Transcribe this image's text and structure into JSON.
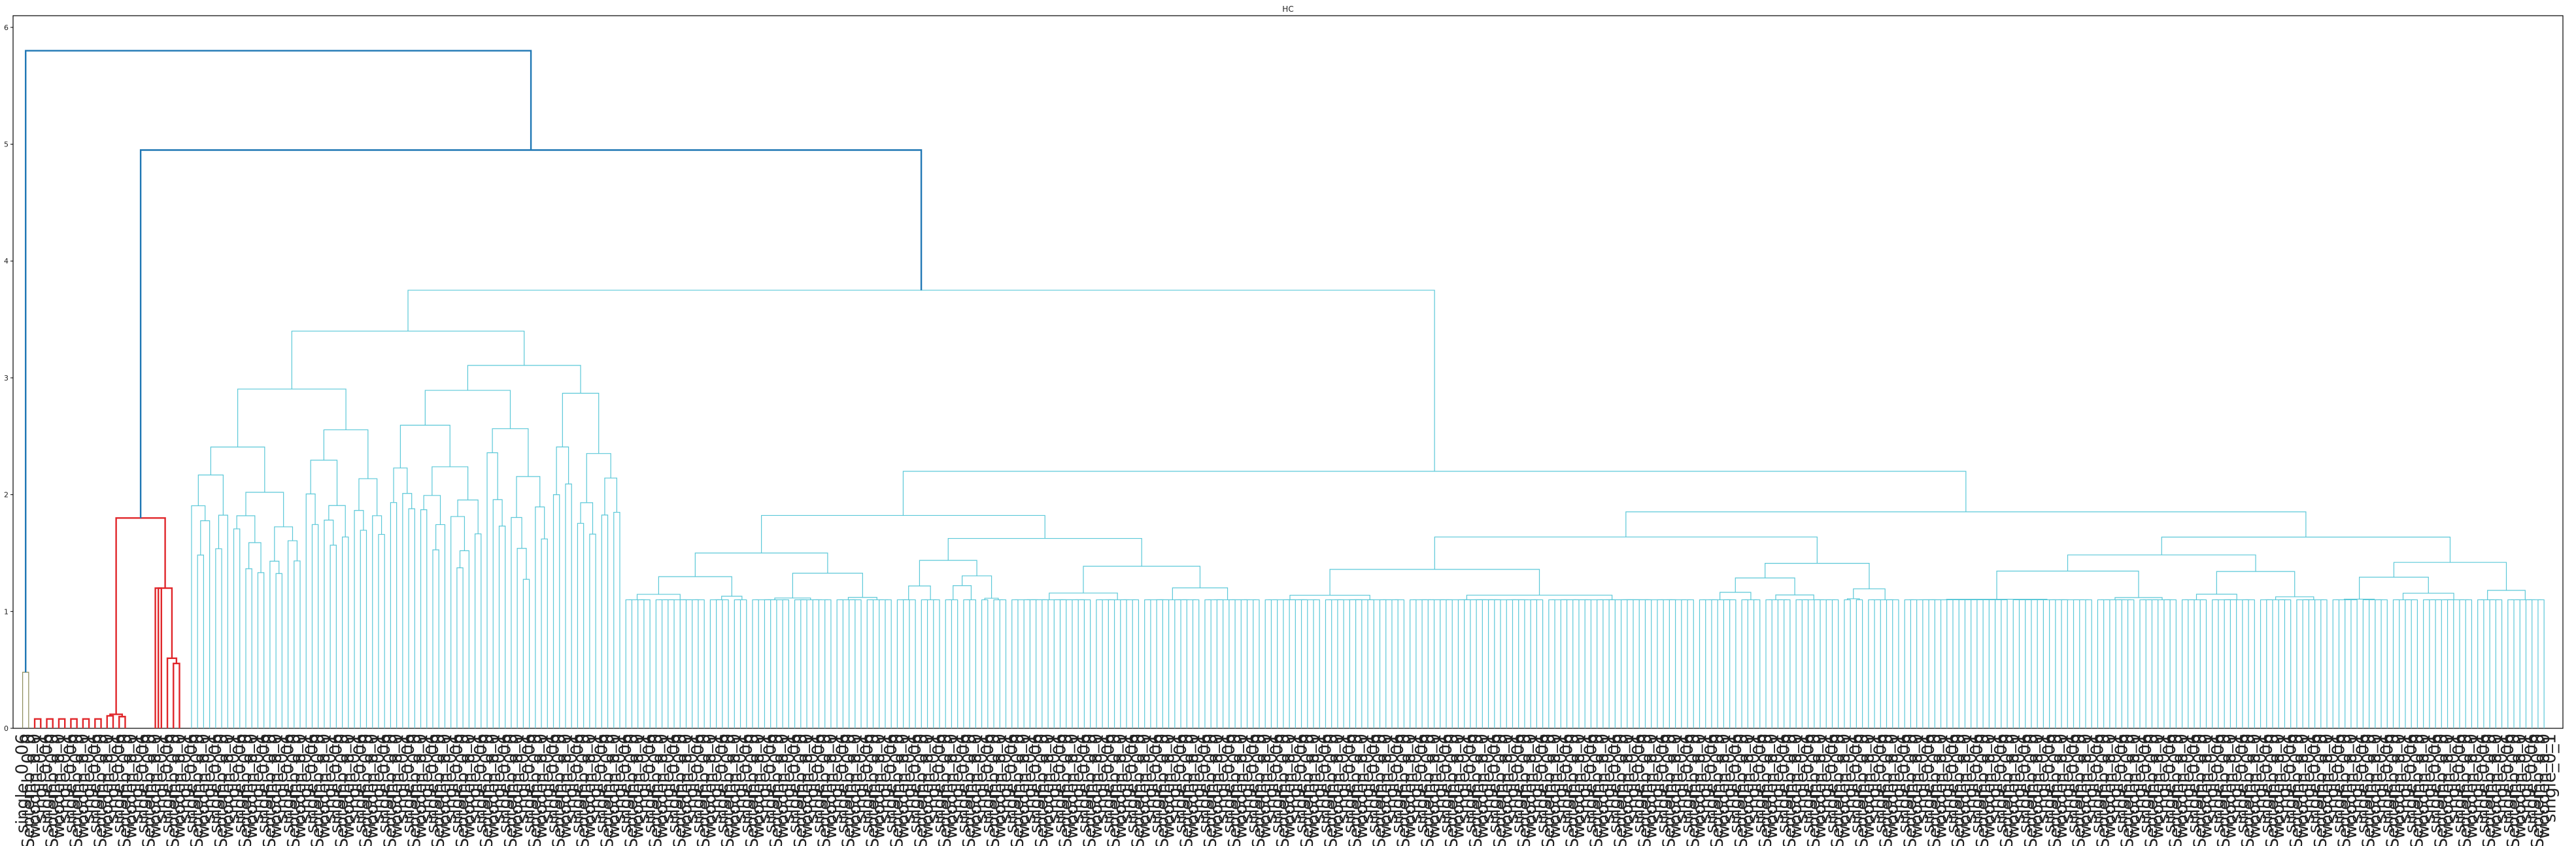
{
  "chart_data": {
    "type": "dendrogram",
    "title": "HC",
    "xlabel": "",
    "ylabel": "",
    "ylim": [
      0,
      6.1
    ],
    "y_ticks": [
      0,
      1,
      2,
      3,
      4,
      5,
      6
    ],
    "grid": false,
    "colors": {
      "cluster_c0": "#8c8c5a",
      "cluster_c1": "#e0262a",
      "cluster_c2": "#5bc8d8",
      "above_threshold": "#1f77b4"
    },
    "top_merges": [
      {
        "name": "root",
        "height": 5.8
      },
      {
        "name": "second",
        "height": 4.95
      },
      {
        "name": "third",
        "height": 3.75
      },
      {
        "name": "red-cluster",
        "height": 1.8
      },
      {
        "name": "olive-cluster",
        "height": 0.48
      }
    ],
    "leaf_label_examples": [
      "single_0_06",
      "Septemb_0_0",
      "wooden_0_0",
      "single_0_1"
    ]
  }
}
